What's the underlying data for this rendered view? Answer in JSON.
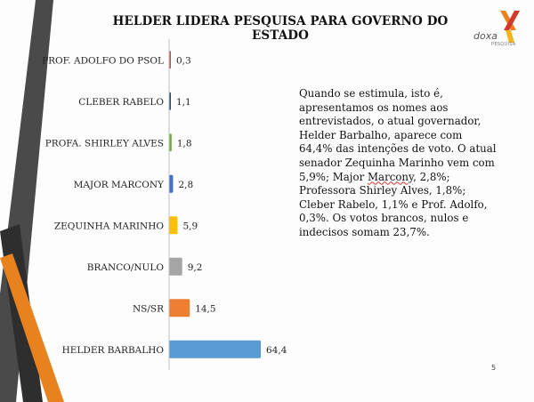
{
  "slide": {
    "title": "HELDER LIDERA PESQUISA PARA GOVERNO DO ESTADO",
    "logo": {
      "name": "doxa",
      "subtitle": "PESQUISA"
    },
    "note": {
      "part1": "Quando se estimula, isto é, apresentamos os nomes aos entrevistados, o atual governador, Helder Barbalho, aparece com 64,4% das intenções de voto. O atual senador Zequinha Marinho vem com 5,9%; Major ",
      "flagged_word": "Marcony",
      "part2": ", 2,8%; Professora Shirley Alves, 1,8%; Cleber Rabelo, 1,1% e Prof. Adolfo, 0,3%. Os votos brancos, nulos e indecisos somam 23,7%."
    },
    "page_number": "5"
  },
  "chart_data": {
    "type": "bar",
    "orientation": "horizontal",
    "categories": [
      "PROF. ADOLFO DO PSOL",
      "CLEBER RABELO",
      "PROFA. SHIRLEY ALVES",
      "MAJOR MARCONY",
      "ZEQUINHA MARINHO",
      "BRANCO/NULO",
      "NS/SR",
      "HELDER BARBALHO"
    ],
    "values": [
      0.3,
      1.1,
      1.8,
      2.8,
      5.9,
      9.2,
      14.5,
      64.4
    ],
    "value_labels": [
      "0,3",
      "1,1",
      "1,8",
      "2,8",
      "5,9",
      "9,2",
      "14,5",
      "64,4"
    ],
    "colors": [
      "#c0504d",
      "#1f4e79",
      "#70ad47",
      "#4472c4",
      "#ffc000",
      "#a5a5a5",
      "#ed7d31",
      "#5b9bd5"
    ],
    "xlim": [
      0,
      70
    ],
    "grid": false,
    "legend": "none"
  },
  "decor": {
    "stripe_gray": "#4a4a4a",
    "stripe_orange": "#e8821e",
    "stripe_dark": "#2e2e2e"
  }
}
